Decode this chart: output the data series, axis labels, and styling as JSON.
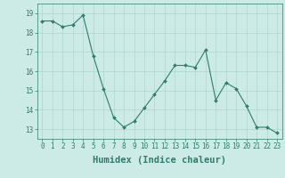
{
  "x": [
    0,
    1,
    2,
    3,
    4,
    5,
    6,
    7,
    8,
    9,
    10,
    11,
    12,
    13,
    14,
    15,
    16,
    17,
    18,
    19,
    20,
    21,
    22,
    23
  ],
  "y": [
    18.6,
    18.6,
    18.3,
    18.4,
    18.9,
    16.8,
    15.1,
    13.6,
    13.1,
    13.4,
    14.1,
    14.8,
    15.5,
    16.3,
    16.3,
    16.2,
    17.1,
    14.5,
    15.4,
    15.1,
    14.2,
    13.1,
    13.1,
    12.8
  ],
  "line_color": "#2e7d6e",
  "marker": "D",
  "marker_size": 2.0,
  "bg_color": "#cceae6",
  "grid_color": "#aed6d0",
  "xlabel": "Humidex (Indice chaleur)",
  "xlim": [
    -0.5,
    23.5
  ],
  "ylim": [
    12.5,
    19.5
  ],
  "yticks": [
    13,
    14,
    15,
    16,
    17,
    18,
    19
  ],
  "xticks": [
    0,
    1,
    2,
    3,
    4,
    5,
    6,
    7,
    8,
    9,
    10,
    11,
    12,
    13,
    14,
    15,
    16,
    17,
    18,
    19,
    20,
    21,
    22,
    23
  ],
  "tick_fontsize": 5.5,
  "xlabel_fontsize": 7.5,
  "spine_color": "#2e7d6e",
  "tick_color": "#2e7d6e"
}
